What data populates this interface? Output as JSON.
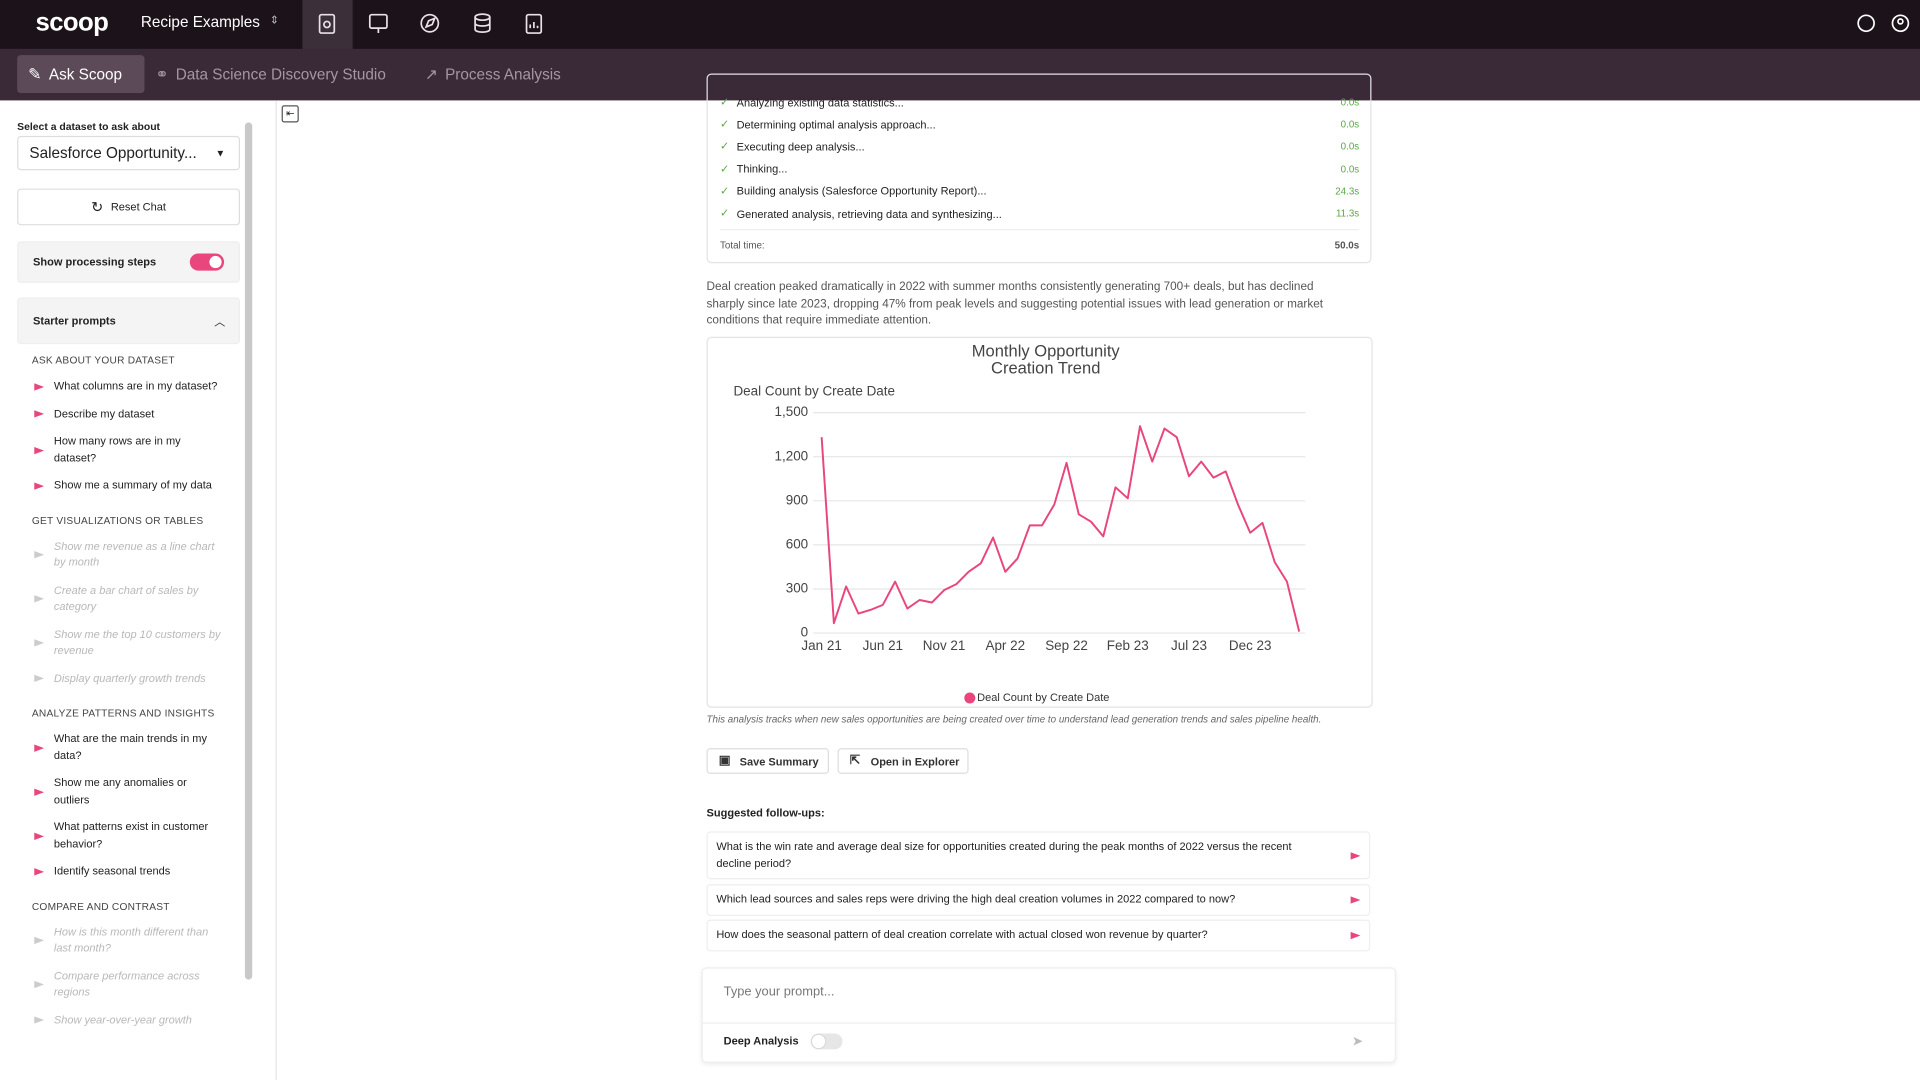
{
  "top_nav": {
    "logo": "scoop",
    "workspace": "Recipe Examples"
  },
  "tabs": [
    "Ask Scoop",
    "Data Science Discovery Studio",
    "Process Analysis"
  ],
  "sidebar": {
    "dataset_label": "Select a dataset to ask about",
    "dataset": "Salesforce Opportunity...",
    "reset": "Reset Chat",
    "processing_toggle": "Show processing steps",
    "starter_title": "Starter prompts",
    "groups": [
      {
        "heading": "ASK ABOUT YOUR DATASET",
        "enabled": true,
        "prompts": [
          "What columns are in my dataset?",
          "Describe my dataset",
          "How many rows are in my dataset?",
          "Show me a summary of my data"
        ]
      },
      {
        "heading": "GET VISUALIZATIONS OR TABLES",
        "enabled": false,
        "prompts": [
          "Show me revenue as a line chart by month",
          "Create a bar chart of sales by category",
          "Show me the top 10 customers by revenue",
          "Display quarterly growth trends"
        ]
      },
      {
        "heading": "ANALYZE PATTERNS AND INSIGHTS",
        "enabled": true,
        "prompts": [
          "What are the main trends in my data?",
          "Show me any anomalies or outliers",
          "What patterns exist in customer behavior?",
          "Identify seasonal trends"
        ]
      },
      {
        "heading": "COMPARE AND CONTRAST",
        "enabled": false,
        "prompts": [
          "How is this month different than last month?",
          "Compare performance across regions",
          "Show year-over-year growth"
        ]
      }
    ]
  },
  "steps": [
    {
      "label": "Analyzing existing data statistics...",
      "time": "0.0s"
    },
    {
      "label": "Determining optimal analysis approach...",
      "time": "0.0s"
    },
    {
      "label": "Executing deep analysis...",
      "time": "0.0s"
    },
    {
      "label": "Thinking...",
      "time": "0.0s"
    },
    {
      "label": "Building analysis (Salesforce Opportunity Report)...",
      "time": "24.3s"
    },
    {
      "label": "Generated analysis, retrieving data and synthesizing...",
      "time": "11.3s"
    }
  ],
  "total_label": "Total time:",
  "total": "50.0s",
  "summary": "Deal creation peaked dramatically in 2022 with summer months consistently generating 700+ deals, but has declined sharply since late 2023, dropping 47% from peak levels and suggesting potential issues with lead generation or market conditions that require immediate attention.",
  "chart_data": {
    "type": "line",
    "title": "Monthly Opportunity Creation Trend",
    "y_label": "Deal Count by Create Date",
    "categories": [
      "Jan 21",
      null,
      null,
      null,
      null,
      "Jun 21",
      null,
      null,
      null,
      null,
      "Nov 21",
      null,
      null,
      null,
      null,
      "Apr 22",
      null,
      null,
      null,
      null,
      "Sep 22",
      null,
      null,
      null,
      null,
      "Feb 23",
      null,
      null,
      null,
      null,
      "Jul 23",
      null,
      null,
      null,
      null,
      "Dec 23",
      null,
      null,
      null,
      null
    ],
    "series": [
      {
        "name": "Deal Count by Create Date",
        "color": "#e8467c",
        "values": [
          1333,
          67,
          317,
          133,
          158,
          192,
          350,
          167,
          225,
          208,
          292,
          333,
          417,
          475,
          650,
          417,
          508,
          733,
          733,
          875,
          1158,
          808,
          758,
          658,
          992,
          917,
          1408,
          1167,
          1392,
          1333,
          1067,
          1167,
          1058,
          1100,
          875,
          683,
          750,
          483,
          350,
          10
        ]
      }
    ],
    "ylim": [
      0,
      1500
    ],
    "yticks": [
      0,
      300,
      600,
      900,
      {
        "value": 1200,
        "label": "1,200"
      },
      {
        "value": 1500,
        "label": "1,500"
      }
    ],
    "grid": true,
    "legend": "bottom"
  },
  "caption": "This analysis tracks when new sales opportunities are being created over time to understand lead generation trends and sales pipeline health.",
  "buttons": [
    "Save Summary",
    "Open in Explorer"
  ],
  "followups_title": "Suggested follow-ups:",
  "followups": [
    "What is the win rate and average deal size for opportunities created during the peak months of 2022 versus the recent decline period?",
    "Which lead sources and sales reps were driving the high deal creation volumes in 2022 compared to now?",
    "How does the seasonal pattern of deal creation correlate with actual closed won revenue by quarter?"
  ],
  "prompt_placeholder": "Type your prompt...",
  "deep_analysis": "Deep Analysis"
}
